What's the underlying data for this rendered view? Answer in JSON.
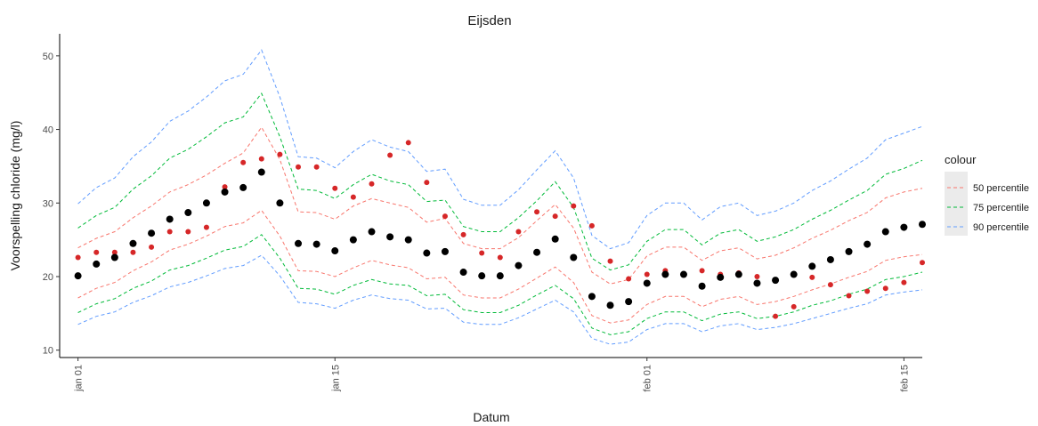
{
  "chart_data": {
    "type": "scatter",
    "title": "Eijsden",
    "xlabel": "Datum",
    "ylabel": "Voorspelling chloride (mg/l)",
    "xlim": [
      "2021-12-31",
      "2022-02-16"
    ],
    "ylim": [
      9,
      53
    ],
    "x_ticks": [
      {
        "date": "2022-01-01",
        "label": "jan 01"
      },
      {
        "date": "2022-01-15",
        "label": "jan 15"
      },
      {
        "date": "2022-02-01",
        "label": "feb 01"
      },
      {
        "date": "2022-02-15",
        "label": "feb 15"
      }
    ],
    "y_ticks": [
      10,
      20,
      30,
      40,
      50
    ],
    "grid": false,
    "legend": {
      "title": "colour",
      "placement": "right",
      "entries": [
        {
          "label": "50 percentile",
          "color": "#f8766d"
        },
        {
          "label": "75 percentile",
          "color": "#00ba38"
        },
        {
          "label": "90 percentile",
          "color": "#619cff"
        }
      ]
    },
    "dates": [
      "2022-01-01",
      "2022-01-02",
      "2022-01-03",
      "2022-01-04",
      "2022-01-05",
      "2022-01-06",
      "2022-01-07",
      "2022-01-08",
      "2022-01-09",
      "2022-01-10",
      "2022-01-11",
      "2022-01-12",
      "2022-01-13",
      "2022-01-14",
      "2022-01-15",
      "2022-01-16",
      "2022-01-17",
      "2022-01-18",
      "2022-01-19",
      "2022-01-20",
      "2022-01-21",
      "2022-01-22",
      "2022-01-23",
      "2022-01-24",
      "2022-01-25",
      "2022-01-26",
      "2022-01-27",
      "2022-01-28",
      "2022-01-29",
      "2022-01-30",
      "2022-01-31",
      "2022-02-01",
      "2022-02-02",
      "2022-02-03",
      "2022-02-04",
      "2022-02-05",
      "2022-02-06",
      "2022-02-07",
      "2022-02-08",
      "2022-02-09",
      "2022-02-10",
      "2022-02-11",
      "2022-02-12",
      "2022-02-13",
      "2022-02-14",
      "2022-02-15",
      "2022-02-16"
    ],
    "prediction": [
      20.1,
      21.7,
      22.6,
      24.5,
      25.9,
      27.8,
      28.7,
      30.0,
      31.5,
      32.1,
      34.2,
      30.0,
      24.5,
      24.4,
      23.5,
      25.0,
      26.1,
      25.4,
      25.0,
      23.2,
      23.4,
      20.6,
      20.1,
      20.1,
      21.5,
      23.3,
      25.1,
      22.6,
      17.3,
      16.1,
      16.6,
      19.1,
      20.3,
      20.3,
      18.7,
      19.9,
      20.3,
      19.1,
      19.5,
      20.3,
      21.4,
      22.3,
      23.4,
      24.4,
      26.1,
      26.7,
      27.1
    ],
    "measured": [
      22.6,
      23.3,
      23.3,
      23.3,
      24.0,
      26.1,
      26.1,
      26.7,
      32.2,
      35.5,
      36.0,
      36.6,
      34.9,
      34.9,
      32.0,
      30.8,
      32.6,
      36.5,
      38.2,
      32.8,
      28.2,
      25.7,
      23.2,
      22.6,
      26.1,
      28.8,
      28.2,
      29.6,
      26.9,
      22.1,
      19.7,
      20.3,
      20.8,
      20.3,
      20.8,
      20.3,
      20.5,
      20.0,
      14.6,
      15.9,
      19.9,
      18.9,
      17.4,
      18.0,
      18.4,
      19.2,
      21.9
    ],
    "series": [
      {
        "name": "50 percentile",
        "color": "#f8766d",
        "upper": [
          23.9,
          25.2,
          26.1,
          28.0,
          29.6,
          31.5,
          32.5,
          33.8,
          35.4,
          36.8,
          40.3,
          35.9,
          28.8,
          28.7,
          27.8,
          29.6,
          30.6,
          30.0,
          29.4,
          27.4,
          27.9,
          24.5,
          23.8,
          23.8,
          25.3,
          27.6,
          29.8,
          26.6,
          20.6,
          19.0,
          19.6,
          22.8,
          24.0,
          24.0,
          22.2,
          23.5,
          23.9,
          22.4,
          22.9,
          23.9,
          25.2,
          26.3,
          27.6,
          28.7,
          30.7,
          31.5,
          32.0
        ],
        "lower": [
          17.1,
          18.4,
          19.2,
          20.8,
          22.0,
          23.6,
          24.4,
          25.5,
          26.8,
          27.3,
          29.0,
          25.5,
          20.8,
          20.7,
          20.0,
          21.2,
          22.2,
          21.6,
          21.2,
          19.7,
          19.9,
          17.5,
          17.1,
          17.1,
          18.3,
          19.8,
          21.3,
          19.2,
          14.7,
          13.7,
          14.1,
          16.2,
          17.3,
          17.3,
          15.9,
          16.9,
          17.3,
          16.2,
          16.6,
          17.3,
          18.2,
          19.0,
          19.9,
          20.7,
          22.2,
          22.7,
          23.0
        ]
      },
      {
        "name": "75 percentile",
        "color": "#00ba38",
        "upper": [
          26.6,
          28.3,
          29.4,
          31.9,
          33.7,
          36.1,
          37.3,
          39.0,
          40.9,
          41.7,
          44.9,
          39.0,
          31.9,
          31.7,
          30.6,
          32.5,
          33.9,
          33.0,
          32.5,
          30.2,
          30.4,
          26.8,
          26.1,
          26.1,
          28.0,
          30.3,
          32.9,
          29.4,
          22.5,
          20.9,
          21.6,
          24.8,
          26.4,
          26.4,
          24.3,
          25.9,
          26.4,
          24.8,
          25.4,
          26.4,
          27.8,
          29.0,
          30.4,
          31.7,
          33.9,
          34.7,
          35.8
        ],
        "lower": [
          15.1,
          16.3,
          17.0,
          18.4,
          19.4,
          20.9,
          21.5,
          22.5,
          23.6,
          24.1,
          25.7,
          22.5,
          18.4,
          18.3,
          17.6,
          18.8,
          19.6,
          19.0,
          18.8,
          17.4,
          17.6,
          15.5,
          15.1,
          15.1,
          16.1,
          17.5,
          18.8,
          17.0,
          13.0,
          12.1,
          12.5,
          14.3,
          15.2,
          15.2,
          14.0,
          14.9,
          15.2,
          14.3,
          14.6,
          15.2,
          16.1,
          16.7,
          17.6,
          18.3,
          19.6,
          20.0,
          20.6
        ]
      },
      {
        "name": "90 percentile",
        "color": "#619cff",
        "upper": [
          29.9,
          32.1,
          33.4,
          36.3,
          38.3,
          41.1,
          42.5,
          44.4,
          46.6,
          47.5,
          50.8,
          44.4,
          36.3,
          36.1,
          34.8,
          37.0,
          38.6,
          37.6,
          37.0,
          34.3,
          34.6,
          30.5,
          29.7,
          29.7,
          31.8,
          34.5,
          37.1,
          33.4,
          25.6,
          23.8,
          24.6,
          28.3,
          30.0,
          30.0,
          27.7,
          29.5,
          30.0,
          28.3,
          28.9,
          30.0,
          31.7,
          33.0,
          34.6,
          36.1,
          38.6,
          39.5,
          40.4
        ],
        "lower": [
          13.5,
          14.6,
          15.2,
          16.5,
          17.4,
          18.6,
          19.2,
          20.1,
          21.1,
          21.5,
          22.9,
          20.1,
          16.5,
          16.3,
          15.7,
          16.8,
          17.5,
          17.0,
          16.8,
          15.6,
          15.7,
          13.8,
          13.5,
          13.5,
          14.4,
          15.6,
          16.8,
          15.2,
          11.6,
          10.8,
          11.1,
          12.8,
          13.6,
          13.6,
          12.5,
          13.3,
          13.6,
          12.8,
          13.1,
          13.6,
          14.3,
          15.0,
          15.7,
          16.3,
          17.5,
          17.9,
          18.2
        ]
      }
    ],
    "prediction_color": "#000000",
    "measured_color": "#d62728"
  }
}
